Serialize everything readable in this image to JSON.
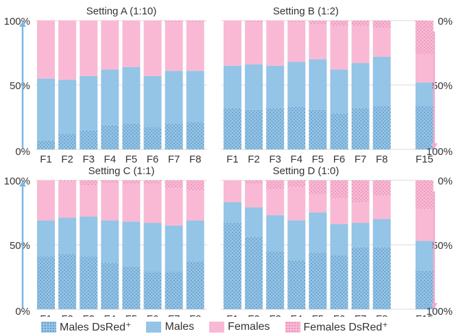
{
  "chart_data": [
    {
      "type": "bar",
      "title": "Setting A (1:10)",
      "categories": [
        "F1",
        "F2",
        "F3",
        "F4",
        "F5",
        "F6",
        "F7",
        "F8"
      ],
      "stacked": true,
      "ylim": [
        0,
        100
      ],
      "left_ticks": [
        "0%",
        "50%",
        "100%"
      ],
      "right_ticks": [],
      "series": [
        {
          "name": "Males DsRed⁺",
          "values": [
            7,
            12,
            15,
            19,
            20,
            17,
            20,
            21
          ]
        },
        {
          "name": "Males",
          "values": [
            48,
            42,
            42,
            43,
            44,
            40,
            41,
            40
          ]
        },
        {
          "name": "Females",
          "values": [
            45,
            46,
            43,
            38,
            36,
            43,
            38,
            38
          ]
        },
        {
          "name": "Females DsRed⁺",
          "values": [
            0,
            0,
            0,
            0,
            0,
            0,
            1,
            1
          ]
        }
      ]
    },
    {
      "type": "bar",
      "title": "Setting B (1:2)",
      "categories": [
        "F1",
        "F2",
        "F3",
        "F4",
        "F5",
        "F6",
        "F7",
        "F8",
        "",
        "F15"
      ],
      "stacked": true,
      "ylim": [
        0,
        100
      ],
      "left_ticks": [],
      "right_ticks": [
        "100%",
        "50%",
        "0%"
      ],
      "series": [
        {
          "name": "Males DsRed⁺",
          "values": [
            32,
            31,
            32,
            33,
            31,
            28,
            32,
            34,
            0,
            34
          ]
        },
        {
          "name": "Males",
          "values": [
            33,
            35,
            33,
            35,
            39,
            34,
            35,
            38,
            0,
            18
          ]
        },
        {
          "name": "Females",
          "values": [
            35,
            33,
            35,
            31,
            27,
            34,
            29,
            22,
            0,
            22
          ]
        },
        {
          "name": "Females DsRed⁺",
          "values": [
            0,
            1,
            0,
            1,
            3,
            4,
            4,
            6,
            0,
            26
          ]
        }
      ]
    },
    {
      "type": "bar",
      "title": "Setting C (1:1)",
      "categories": [
        "F1",
        "F2",
        "F3",
        "F4",
        "F5",
        "F6",
        "F7",
        "F8"
      ],
      "stacked": true,
      "ylim": [
        0,
        100
      ],
      "left_ticks": [
        "0%",
        "50%",
        "100%"
      ],
      "right_ticks": [],
      "series": [
        {
          "name": "Males DsRed⁺",
          "values": [
            41,
            43,
            41,
            36,
            33,
            29,
            29,
            37
          ]
        },
        {
          "name": "Males",
          "values": [
            28,
            28,
            31,
            33,
            35,
            38,
            36,
            32
          ]
        },
        {
          "name": "Females",
          "values": [
            31,
            28,
            24,
            29,
            29,
            30,
            29,
            23
          ]
        },
        {
          "name": "Females DsRed⁺",
          "values": [
            0,
            1,
            4,
            2,
            3,
            3,
            6,
            8
          ]
        }
      ]
    },
    {
      "type": "bar",
      "title": "Setting D (1:0)",
      "categories": [
        "F1",
        "F2",
        "F3",
        "F4",
        "F5",
        "F6",
        "F7",
        "F8",
        "",
        "F15"
      ],
      "stacked": true,
      "ylim": [
        0,
        100
      ],
      "left_ticks": [],
      "right_ticks": [
        "100%",
        "50%",
        "0%"
      ],
      "series": [
        {
          "name": "Males DsRed⁺",
          "values": [
            67,
            56,
            45,
            38,
            44,
            42,
            48,
            48,
            0,
            30
          ]
        },
        {
          "name": "Males",
          "values": [
            16,
            23,
            28,
            31,
            31,
            24,
            19,
            22,
            0,
            23
          ]
        },
        {
          "name": "Females",
          "values": [
            17,
            18,
            20,
            26,
            14,
            20,
            16,
            18,
            0,
            25
          ]
        },
        {
          "name": "Females DsRed⁺",
          "values": [
            0,
            3,
            7,
            5,
            11,
            14,
            17,
            12,
            0,
            22
          ]
        }
      ]
    }
  ],
  "legend": [
    {
      "label": "Males DsRed⁺",
      "key": "mdsred"
    },
    {
      "label": "Males",
      "key": "males"
    },
    {
      "label": "Females",
      "key": "females"
    },
    {
      "label": "Females DsRed⁺",
      "key": "fdsred"
    }
  ],
  "colors": {
    "males": "#94c4e6",
    "males_dots": "#5f97c6",
    "females": "#f9b9d4",
    "females_dots": "#e58fb5",
    "left_arrow": "#7ab7e3",
    "right_arrow": "#f5a9cb",
    "gridline": "#d9d9d9"
  }
}
